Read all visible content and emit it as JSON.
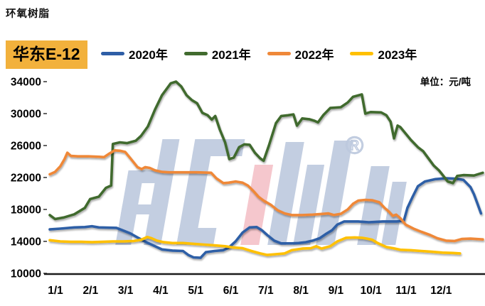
{
  "header": {
    "page_title": "环氧树脂",
    "series_badge": "华东E-12",
    "unit_label": "单位：元/吨"
  },
  "legend": [
    {
      "label": "2020年",
      "color": "#2E5EA6"
    },
    {
      "label": "2021年",
      "color": "#416B2E"
    },
    {
      "label": "2022年",
      "color": "#EF8839"
    },
    {
      "label": "2023年",
      "color": "#FFC000"
    }
  ],
  "watermark": {
    "registered_symbol": "®",
    "blue": "#BDC9DE",
    "pink": "#F5C2C8"
  },
  "chart_data": {
    "type": "line",
    "title": "环氧树脂 华东E-12",
    "ylabel": "元/吨",
    "grid": false,
    "legend_position": "top",
    "y_axis": {
      "min": 10000,
      "max": 34000,
      "step": 4000,
      "tick_labels": [
        "10000",
        "14000",
        "18000",
        "22000",
        "26000",
        "30000",
        "34000"
      ]
    },
    "x_axis": {
      "tick_labels": [
        "1/1",
        "2/1",
        "3/1",
        "4/1",
        "5/1",
        "6/1",
        "7/1",
        "8/1",
        "9/1",
        "10/1",
        "11/1",
        "12/1"
      ]
    },
    "series": [
      {
        "name": "2020年",
        "color": "#2E5EA6",
        "points": [
          [
            0,
            15500
          ],
          [
            0.3,
            15600
          ],
          [
            0.7,
            15750
          ],
          [
            1.0,
            15800
          ],
          [
            1.2,
            15900
          ],
          [
            1.4,
            15750
          ],
          [
            1.9,
            15700
          ],
          [
            2.1,
            15350
          ],
          [
            2.3,
            15000
          ],
          [
            2.5,
            14500
          ],
          [
            2.75,
            13900
          ],
          [
            3.0,
            13400
          ],
          [
            3.2,
            13000
          ],
          [
            3.5,
            12850
          ],
          [
            3.8,
            12800
          ],
          [
            3.95,
            12300
          ],
          [
            4.1,
            12000
          ],
          [
            4.3,
            11950
          ],
          [
            4.45,
            12650
          ],
          [
            4.7,
            12800
          ],
          [
            4.95,
            12900
          ],
          [
            5.1,
            13200
          ],
          [
            5.3,
            14000
          ],
          [
            5.5,
            15100
          ],
          [
            5.7,
            15750
          ],
          [
            5.9,
            15800
          ],
          [
            6.05,
            15400
          ],
          [
            6.2,
            14800
          ],
          [
            6.4,
            14100
          ],
          [
            6.6,
            13750
          ],
          [
            6.9,
            13750
          ],
          [
            7.1,
            13800
          ],
          [
            7.3,
            13900
          ],
          [
            7.5,
            14100
          ],
          [
            7.7,
            14400
          ],
          [
            7.9,
            15000
          ],
          [
            8.05,
            15400
          ],
          [
            8.2,
            16100
          ],
          [
            8.4,
            16500
          ],
          [
            8.8,
            16500
          ],
          [
            9.1,
            16400
          ],
          [
            9.5,
            16500
          ],
          [
            9.9,
            16500
          ],
          [
            10.1,
            16600
          ],
          [
            10.2,
            18200
          ],
          [
            10.35,
            19600
          ],
          [
            10.5,
            20900
          ],
          [
            10.7,
            21500
          ],
          [
            11.0,
            21800
          ],
          [
            11.3,
            21900
          ],
          [
            11.6,
            21850
          ],
          [
            11.8,
            21700
          ],
          [
            12.0,
            20800
          ],
          [
            12.1,
            19900
          ],
          [
            12.2,
            18700
          ],
          [
            12.3,
            17500
          ]
        ]
      },
      {
        "name": "2021年",
        "color": "#416B2E",
        "points": [
          [
            0,
            17300
          ],
          [
            0.15,
            16800
          ],
          [
            0.4,
            17000
          ],
          [
            0.7,
            17400
          ],
          [
            1.0,
            18200
          ],
          [
            1.15,
            19300
          ],
          [
            1.4,
            19600
          ],
          [
            1.6,
            20700
          ],
          [
            1.75,
            21000
          ],
          [
            1.8,
            26200
          ],
          [
            2.0,
            26400
          ],
          [
            2.2,
            26300
          ],
          [
            2.45,
            26600
          ],
          [
            2.6,
            27200
          ],
          [
            2.8,
            28400
          ],
          [
            3.0,
            30500
          ],
          [
            3.2,
            32300
          ],
          [
            3.45,
            33800
          ],
          [
            3.6,
            34000
          ],
          [
            3.75,
            33400
          ],
          [
            3.9,
            32300
          ],
          [
            4.05,
            31700
          ],
          [
            4.2,
            31300
          ],
          [
            4.35,
            30100
          ],
          [
            4.5,
            29800
          ],
          [
            4.62,
            29250
          ],
          [
            4.72,
            29700
          ],
          [
            4.85,
            28000
          ],
          [
            5.0,
            26400
          ],
          [
            5.12,
            24300
          ],
          [
            5.25,
            24500
          ],
          [
            5.4,
            25800
          ],
          [
            5.55,
            26150
          ],
          [
            5.7,
            26100
          ],
          [
            5.85,
            25100
          ],
          [
            6.0,
            24400
          ],
          [
            6.1,
            24100
          ],
          [
            6.25,
            26000
          ],
          [
            6.45,
            28800
          ],
          [
            6.6,
            29700
          ],
          [
            6.8,
            29800
          ],
          [
            6.95,
            29900
          ],
          [
            7.05,
            28500
          ],
          [
            7.2,
            29400
          ],
          [
            7.4,
            29300
          ],
          [
            7.55,
            29100
          ],
          [
            7.65,
            28900
          ],
          [
            7.8,
            29800
          ],
          [
            8.0,
            30700
          ],
          [
            8.3,
            30800
          ],
          [
            8.5,
            31400
          ],
          [
            8.65,
            32100
          ],
          [
            8.9,
            32400
          ],
          [
            9.0,
            30000
          ],
          [
            9.15,
            30200
          ],
          [
            9.45,
            30150
          ],
          [
            9.6,
            29800
          ],
          [
            9.72,
            29000
          ],
          [
            9.82,
            26900
          ],
          [
            9.92,
            28500
          ],
          [
            10.0,
            28300
          ],
          [
            10.15,
            27500
          ],
          [
            10.3,
            26700
          ],
          [
            10.5,
            25800
          ],
          [
            10.65,
            25300
          ],
          [
            10.8,
            24400
          ],
          [
            10.95,
            23500
          ],
          [
            11.1,
            22900
          ],
          [
            11.2,
            22350
          ],
          [
            11.35,
            21500
          ],
          [
            11.5,
            21300
          ],
          [
            11.62,
            22200
          ],
          [
            11.8,
            22300
          ],
          [
            12.1,
            22250
          ],
          [
            12.35,
            22600
          ]
        ]
      },
      {
        "name": "2022年",
        "color": "#EF8839",
        "points": [
          [
            0,
            22400
          ],
          [
            0.15,
            22700
          ],
          [
            0.3,
            23400
          ],
          [
            0.42,
            24300
          ],
          [
            0.5,
            25100
          ],
          [
            0.6,
            24700
          ],
          [
            0.8,
            24650
          ],
          [
            1.1,
            24650
          ],
          [
            1.4,
            24600
          ],
          [
            1.55,
            24550
          ],
          [
            1.7,
            25000
          ],
          [
            1.85,
            25400
          ],
          [
            2.0,
            25350
          ],
          [
            2.15,
            25200
          ],
          [
            2.3,
            24400
          ],
          [
            2.5,
            23300
          ],
          [
            2.62,
            23050
          ],
          [
            2.72,
            23300
          ],
          [
            2.85,
            23200
          ],
          [
            3.0,
            22900
          ],
          [
            3.2,
            22700
          ],
          [
            3.4,
            22650
          ],
          [
            3.8,
            22650
          ],
          [
            4.2,
            22650
          ],
          [
            4.6,
            22600
          ],
          [
            4.75,
            21900
          ],
          [
            4.95,
            21300
          ],
          [
            5.1,
            21350
          ],
          [
            5.3,
            21500
          ],
          [
            5.5,
            21350
          ],
          [
            5.65,
            21000
          ],
          [
            5.8,
            20350
          ],
          [
            5.95,
            19600
          ],
          [
            6.1,
            19100
          ],
          [
            6.3,
            18600
          ],
          [
            6.5,
            17900
          ],
          [
            6.7,
            17500
          ],
          [
            6.9,
            17300
          ],
          [
            7.2,
            17300
          ],
          [
            7.5,
            17350
          ],
          [
            7.8,
            17450
          ],
          [
            7.95,
            17500
          ],
          [
            8.1,
            17300
          ],
          [
            8.3,
            17450
          ],
          [
            8.5,
            18000
          ],
          [
            8.65,
            18700
          ],
          [
            8.8,
            19100
          ],
          [
            9.0,
            19200
          ],
          [
            9.2,
            19150
          ],
          [
            9.4,
            18900
          ],
          [
            9.55,
            18200
          ],
          [
            9.68,
            17700
          ],
          [
            9.78,
            17200
          ],
          [
            9.88,
            17350
          ],
          [
            10.0,
            16900
          ],
          [
            10.15,
            16100
          ],
          [
            10.4,
            15550
          ],
          [
            10.6,
            15200
          ],
          [
            10.85,
            14800
          ],
          [
            11.05,
            14400
          ],
          [
            11.3,
            14100
          ],
          [
            11.55,
            14050
          ],
          [
            11.75,
            14300
          ],
          [
            12.0,
            14350
          ],
          [
            12.35,
            14250
          ]
        ]
      },
      {
        "name": "2023年",
        "color": "#FFC000",
        "points": [
          [
            0,
            14150
          ],
          [
            0.3,
            14000
          ],
          [
            0.6,
            13950
          ],
          [
            0.9,
            13950
          ],
          [
            1.2,
            13900
          ],
          [
            1.5,
            13950
          ],
          [
            1.8,
            14000
          ],
          [
            2.1,
            14000
          ],
          [
            2.4,
            14050
          ],
          [
            2.6,
            14200
          ],
          [
            2.78,
            14550
          ],
          [
            2.9,
            14400
          ],
          [
            3.05,
            14100
          ],
          [
            3.25,
            13900
          ],
          [
            3.5,
            13800
          ],
          [
            3.8,
            13800
          ],
          [
            4.1,
            13700
          ],
          [
            4.4,
            13600
          ],
          [
            4.7,
            13500
          ],
          [
            5.0,
            13400
          ],
          [
            5.2,
            13250
          ],
          [
            5.5,
            13150
          ],
          [
            5.75,
            12800
          ],
          [
            6.0,
            12500
          ],
          [
            6.2,
            12300
          ],
          [
            6.45,
            12400
          ],
          [
            6.7,
            12500
          ],
          [
            6.9,
            12900
          ],
          [
            7.2,
            13100
          ],
          [
            7.45,
            13150
          ],
          [
            7.6,
            13400
          ],
          [
            7.75,
            13100
          ],
          [
            8.0,
            13400
          ],
          [
            8.2,
            14000
          ],
          [
            8.45,
            14450
          ],
          [
            8.7,
            14500
          ],
          [
            8.9,
            14450
          ],
          [
            9.05,
            14350
          ],
          [
            9.2,
            14200
          ],
          [
            9.35,
            13800
          ],
          [
            9.6,
            13300
          ],
          [
            9.8,
            13150
          ],
          [
            10.0,
            12950
          ],
          [
            10.3,
            12900
          ],
          [
            10.6,
            12800
          ],
          [
            10.9,
            12700
          ],
          [
            11.2,
            12600
          ],
          [
            11.5,
            12550
          ],
          [
            11.7,
            12500
          ]
        ]
      }
    ]
  }
}
